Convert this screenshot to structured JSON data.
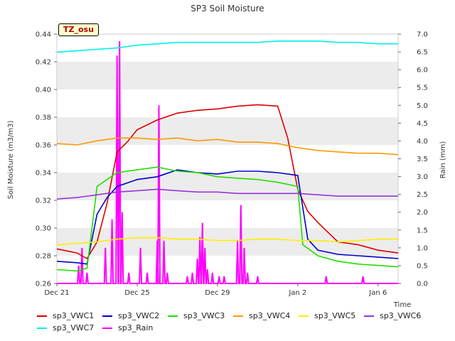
{
  "chart_data": {
    "type": "line",
    "title": "SP3 Soil Moisture",
    "site_label": "TZ_osu",
    "xlabel": "Time",
    "ylabel": "Soil Moisture (m3/m3)",
    "y2label": "Rain (mm)",
    "x_range_days": [
      "2023-12-21",
      "2024-01-07"
    ],
    "x_ticks": [
      {
        "label": "Dec 21",
        "date": "2023-12-21"
      },
      {
        "label": "Dec 25",
        "date": "2023-12-25"
      },
      {
        "label": "Dec 29",
        "date": "2023-12-29"
      },
      {
        "label": "Jan 2",
        "date": "2024-01-02"
      },
      {
        "label": "Jan 6",
        "date": "2024-01-06"
      }
    ],
    "ylim": [
      0.26,
      0.44
    ],
    "y_ticks": [
      "0.26",
      "0.28",
      "0.30",
      "0.32",
      "0.34",
      "0.36",
      "0.38",
      "0.40",
      "0.42",
      "0.44"
    ],
    "y2lim": [
      0.0,
      7.0
    ],
    "y2_ticks": [
      "0.0",
      "0.5",
      "1.0",
      "1.5",
      "2.0",
      "2.5",
      "3.0",
      "3.5",
      "4.0",
      "4.5",
      "5.0",
      "5.5",
      "6.0",
      "6.5",
      "7.0"
    ],
    "background_bands": true,
    "legend_position": "bottom",
    "series": [
      {
        "name": "sp3_VWC1",
        "color": "#dd0000",
        "axis": "left",
        "x": [
          "2023-12-21",
          "2023-12-22",
          "2023-12-22 12:00",
          "2023-12-23",
          "2023-12-23 12:00",
          "2023-12-24",
          "2023-12-24 12:00",
          "2023-12-25",
          "2023-12-26",
          "2023-12-27",
          "2023-12-28",
          "2023-12-29",
          "2023-12-30",
          "2023-12-31",
          "2024-01-01",
          "2024-01-01 12:00",
          "2024-01-02",
          "2024-01-02 12:00",
          "2024-01-03",
          "2024-01-03 12:00",
          "2024-01-04",
          "2024-01-05",
          "2024-01-06",
          "2024-01-07"
        ],
        "y": [
          0.285,
          0.282,
          0.278,
          0.29,
          0.318,
          0.355,
          0.362,
          0.371,
          0.378,
          0.383,
          0.385,
          0.386,
          0.388,
          0.389,
          0.388,
          0.365,
          0.328,
          0.312,
          0.304,
          0.297,
          0.29,
          0.288,
          0.284,
          0.282
        ]
      },
      {
        "name": "sp3_VWC2",
        "color": "#0000cc",
        "axis": "left",
        "x": [
          "2023-12-21",
          "2023-12-22",
          "2023-12-22 12:00",
          "2023-12-23",
          "2023-12-23 12:00",
          "2023-12-24",
          "2023-12-25",
          "2023-12-26",
          "2023-12-27",
          "2023-12-28",
          "2023-12-29",
          "2023-12-30",
          "2023-12-31",
          "2024-01-01",
          "2024-01-02",
          "2024-01-02 12:00",
          "2024-01-03",
          "2024-01-04",
          "2024-01-05",
          "2024-01-06",
          "2024-01-07"
        ],
        "y": [
          0.276,
          0.275,
          0.274,
          0.31,
          0.322,
          0.33,
          0.335,
          0.337,
          0.342,
          0.34,
          0.339,
          0.341,
          0.341,
          0.34,
          0.338,
          0.292,
          0.284,
          0.281,
          0.28,
          0.279,
          0.278
        ]
      },
      {
        "name": "sp3_VWC3",
        "color": "#22dd00",
        "axis": "left",
        "x": [
          "2023-12-21",
          "2023-12-22",
          "2023-12-22 12:00",
          "2023-12-23",
          "2023-12-23 12:00",
          "2023-12-24",
          "2023-12-25",
          "2023-12-26",
          "2023-12-27",
          "2023-12-28",
          "2023-12-29",
          "2023-12-30",
          "2023-12-31",
          "2024-01-01",
          "2024-01-02",
          "2024-01-02 06:00",
          "2024-01-03",
          "2024-01-04",
          "2024-01-05",
          "2024-01-06",
          "2024-01-07"
        ],
        "y": [
          0.27,
          0.269,
          0.271,
          0.33,
          0.335,
          0.34,
          0.342,
          0.344,
          0.341,
          0.34,
          0.337,
          0.336,
          0.335,
          0.333,
          0.33,
          0.288,
          0.28,
          0.276,
          0.274,
          0.273,
          0.272
        ]
      },
      {
        "name": "sp3_VWC4",
        "color": "#ff9900",
        "axis": "left",
        "x": [
          "2023-12-21",
          "2023-12-22",
          "2023-12-23",
          "2023-12-24",
          "2023-12-25",
          "2023-12-26",
          "2023-12-27",
          "2023-12-28",
          "2023-12-29",
          "2023-12-30",
          "2023-12-31",
          "2024-01-01",
          "2024-01-02",
          "2024-01-03",
          "2024-01-04",
          "2024-01-05",
          "2024-01-06",
          "2024-01-07"
        ],
        "y": [
          0.361,
          0.36,
          0.363,
          0.365,
          0.365,
          0.364,
          0.365,
          0.363,
          0.364,
          0.362,
          0.362,
          0.361,
          0.358,
          0.356,
          0.355,
          0.354,
          0.354,
          0.353
        ]
      },
      {
        "name": "sp3_VWC5",
        "color": "#ffee00",
        "axis": "left",
        "x": [
          "2023-12-21",
          "2023-12-22",
          "2023-12-23",
          "2023-12-24",
          "2023-12-25",
          "2023-12-26",
          "2023-12-27",
          "2023-12-28",
          "2023-12-29",
          "2023-12-30",
          "2023-12-31",
          "2024-01-01",
          "2024-01-02",
          "2024-01-03",
          "2024-01-04",
          "2024-01-05",
          "2024-01-06",
          "2024-01-07"
        ],
        "y": [
          0.288,
          0.289,
          0.29,
          0.292,
          0.293,
          0.293,
          0.292,
          0.292,
          0.291,
          0.291,
          0.292,
          0.292,
          0.291,
          0.291,
          0.29,
          0.291,
          0.292,
          0.292
        ]
      },
      {
        "name": "sp3_VWC6",
        "color": "#9933dd",
        "axis": "left",
        "x": [
          "2023-12-21",
          "2023-12-22",
          "2023-12-23",
          "2023-12-24",
          "2023-12-25",
          "2023-12-26",
          "2023-12-27",
          "2023-12-28",
          "2023-12-29",
          "2023-12-30",
          "2023-12-31",
          "2024-01-01",
          "2024-01-02",
          "2024-01-03",
          "2024-01-04",
          "2024-01-05",
          "2024-01-06",
          "2024-01-07"
        ],
        "y": [
          0.321,
          0.322,
          0.324,
          0.326,
          0.327,
          0.328,
          0.327,
          0.326,
          0.326,
          0.325,
          0.325,
          0.325,
          0.325,
          0.324,
          0.323,
          0.323,
          0.323,
          0.323
        ]
      },
      {
        "name": "sp3_VWC7",
        "color": "#00eeee",
        "axis": "left",
        "x": [
          "2023-12-21",
          "2023-12-22",
          "2023-12-23",
          "2023-12-24",
          "2023-12-25",
          "2023-12-26",
          "2023-12-27",
          "2023-12-28",
          "2023-12-29",
          "2023-12-30",
          "2023-12-31",
          "2024-01-01",
          "2024-01-02",
          "2024-01-03",
          "2024-01-04",
          "2024-01-05",
          "2024-01-06",
          "2024-01-07"
        ],
        "y": [
          0.427,
          0.428,
          0.429,
          0.43,
          0.432,
          0.433,
          0.434,
          0.434,
          0.434,
          0.434,
          0.434,
          0.435,
          0.435,
          0.435,
          0.434,
          0.434,
          0.433,
          0.433
        ]
      },
      {
        "name": "sp3_Rain",
        "color": "#ff00ff",
        "axis": "right",
        "style": "spikes",
        "x": [
          "2023-12-22 02:00",
          "2023-12-22 06:00",
          "2023-12-22 12:00",
          "2023-12-23 10:00",
          "2023-12-23 18:00",
          "2023-12-24 00:00",
          "2023-12-24 03:00",
          "2023-12-24 06:00",
          "2023-12-24 14:00",
          "2023-12-25 04:00",
          "2023-12-25 12:00",
          "2023-12-26 00:00",
          "2023-12-26 02:00",
          "2023-12-26 08:00",
          "2023-12-26 12:00",
          "2023-12-27 12:00",
          "2023-12-27 18:00",
          "2023-12-28 00:00",
          "2023-12-28 03:00",
          "2023-12-28 06:00",
          "2023-12-28 09:00",
          "2023-12-28 12:00",
          "2023-12-28 18:00",
          "2023-12-29 02:00",
          "2023-12-29 08:00",
          "2023-12-30 00:00",
          "2023-12-30 04:00",
          "2023-12-30 08:00",
          "2023-12-30 12:00",
          "2023-12-31 00:00",
          "2024-01-03 10:00",
          "2024-01-05 06:00"
        ],
        "y": [
          0.5,
          1.0,
          0.3,
          1.0,
          1.8,
          6.4,
          6.8,
          2.0,
          0.3,
          1.0,
          0.3,
          1.2,
          5.0,
          1.2,
          0.3,
          0.2,
          0.3,
          0.7,
          1.3,
          1.7,
          1.0,
          0.4,
          0.3,
          0.2,
          0.2,
          1.2,
          2.2,
          1.0,
          0.3,
          0.2,
          0.2,
          0.2
        ]
      }
    ]
  }
}
